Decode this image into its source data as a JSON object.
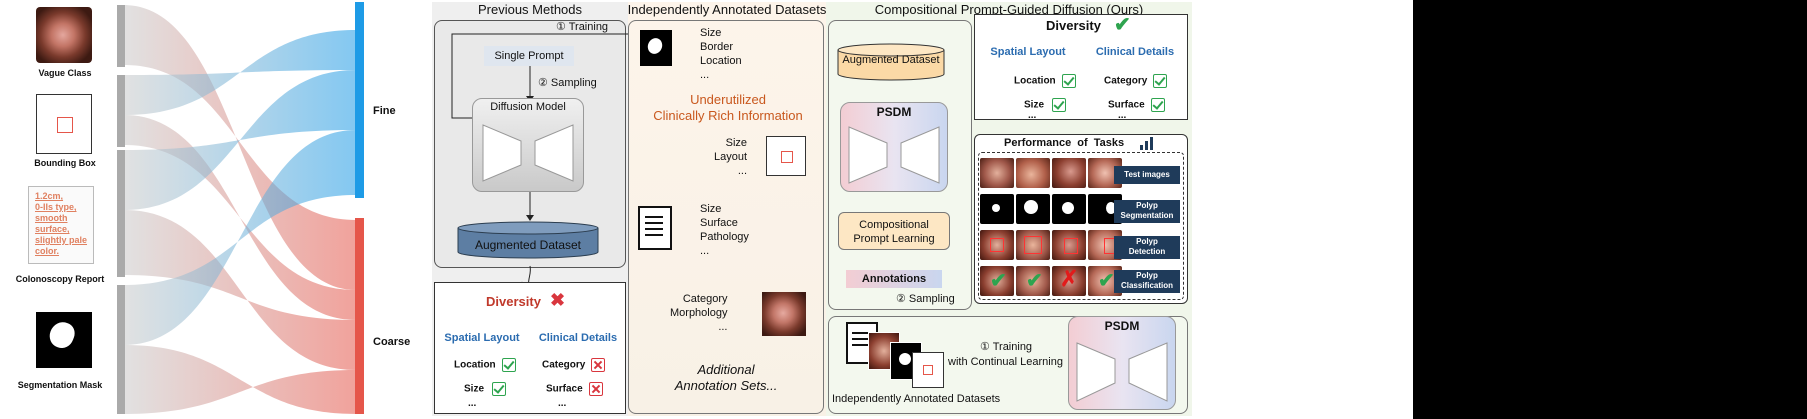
{
  "sankey": {
    "sources": [
      "Vague Class",
      "Bounding Box",
      "Colonoscopy Report",
      "Segmentation Mask"
    ],
    "report_text": "1.2cm,\n0-IIs type,\nsmooth\nsurface,\nslightly pale\ncolor.",
    "targets": [
      "Fine",
      "Coarse"
    ]
  },
  "previous": {
    "title": "Previous Methods",
    "training": "① Training",
    "single_prompt": "Single Prompt",
    "sampling": "② Sampling",
    "diffusion_model": "Diffusion Model",
    "augmented_dataset": "Augmented Dataset",
    "diversity": "Diversity",
    "spatial_layout": "Spatial Layout",
    "clinical_details": "Clinical Details",
    "left_items": [
      "Location",
      "Size",
      "..."
    ],
    "right_items": [
      "Category",
      "Surface",
      "..."
    ]
  },
  "independent": {
    "title": "Independently Annotated Datasets",
    "list1": "Size\nBorder\nLocation\n...",
    "underutilized": "Underutilized\nClinically Rich Information",
    "list2": "Size\nLayout\n...",
    "list3": "Size\nSurface\nPathology\n...",
    "list4": "Category\nMorphology\n...",
    "additional": "Additional\nAnnotation Sets..."
  },
  "ours": {
    "title": "Compositional Prompt-Guided Diffusion (Ours)",
    "augmented_dataset": "Augmented Dataset",
    "psdm": "PSDM",
    "cpl": "Compositional\nPrompt Learning",
    "annotations": "Annotations",
    "sampling": "② Sampling",
    "diversity": "Diversity",
    "spatial_layout": "Spatial Layout",
    "clinical_details": "Clinical Details",
    "left_items": [
      "Location",
      "Size",
      "..."
    ],
    "right_items": [
      "Category",
      "Surface",
      "..."
    ],
    "performance": "Performance of Tasks",
    "tasks": [
      "Test images",
      "Polyp\nSegmentation",
      "Polyp\nDetection",
      "Polyp\nClassification"
    ],
    "training": "① Training",
    "continual": "with Continual Learning",
    "psdm2": "PSDM",
    "independent_label": "Independently Annotated Datasets"
  },
  "colors": {
    "fine": "#1e9be6",
    "coarse": "#e5564a",
    "green_check": "#2ea44f",
    "red_cross": "#d9363e",
    "orange_text": "#c9581e",
    "blue_text": "#2b6cb0"
  }
}
